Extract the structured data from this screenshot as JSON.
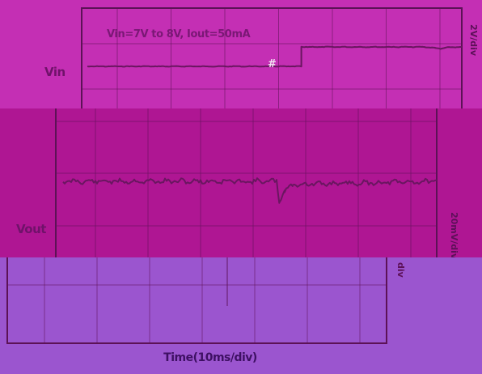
{
  "chart_data": [
    {
      "type": "line",
      "name_label": "Vin",
      "annotation": "Vin=7V to 8V, Iout=50mA",
      "scale_label": "2V/div",
      "cursor_mark": "#",
      "x_unit": "ms",
      "xlim": [
        0,
        70
      ],
      "ylim": [
        5,
        10
      ],
      "series": [
        {
          "x": [
            0,
            40,
            40,
            63,
            65,
            66,
            67,
            70
          ],
          "y": [
            7,
            7,
            8,
            8,
            7.95,
            7.9,
            7.97,
            8
          ]
        }
      ],
      "grid": true
    },
    {
      "type": "line",
      "name_label": "Vout",
      "scale_label": "20mV/div",
      "x_unit": "ms",
      "xlim": [
        0,
        70
      ],
      "ylim": [
        -80,
        40
      ],
      "series": [
        {
          "x": [
            0,
            40,
            40.5,
            41.5,
            43,
            70
          ],
          "y": [
            0,
            0,
            -12,
            -6,
            -2,
            0
          ]
        }
      ],
      "grid": true
    },
    {
      "type": "line",
      "scale_label": "div",
      "xlabel": "Time(10ms/div)",
      "grid": true
    }
  ],
  "colors": {
    "top_background": "#c42fb4",
    "middle_background": "#af1693",
    "bottom_background": "#9b55cf",
    "trace": "#6a1660",
    "grid_frame": "#5c1256"
  }
}
